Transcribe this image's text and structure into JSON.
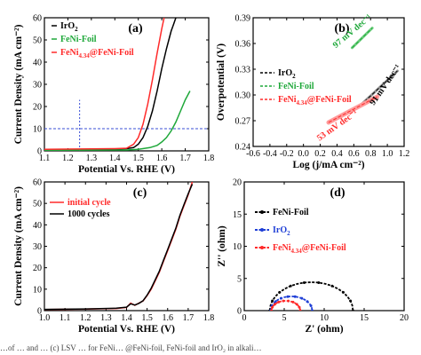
{
  "colors": {
    "black": "#000000",
    "red": "#ff2a2a",
    "green": "#1fa83a",
    "blue": "#1f3fd6",
    "light_red": "#ff9a9a",
    "light_green": "#6fcf7f",
    "grey": "#9a9a9a",
    "guide_blue": "#3a4fd6"
  },
  "caption": "…of … and … (c) LSV … for FeNi… @FeNi-foil, FeNi-foil and IrO₂ in alkali…",
  "chart_data": [
    {
      "id": "a",
      "type": "line",
      "panel_label": "(a)",
      "xlabel": "Potential Vs. RHE (V)",
      "ylabel": "Current Density (mA cm⁻²)",
      "xlim": [
        1.1,
        1.8
      ],
      "ylim": [
        0,
        60
      ],
      "xticks": [
        "1.1",
        "1.2",
        "1.3",
        "1.4",
        "1.5",
        "1.6",
        "1.7",
        "1.8"
      ],
      "yticks": [
        "0",
        "10",
        "20",
        "30",
        "40",
        "50",
        "60"
      ],
      "legend": [
        {
          "base": "IrO",
          "sub": "2",
          "rest": "",
          "color": "#000000"
        },
        {
          "base": "FeNi-Foil",
          "sub": "",
          "rest": "",
          "color": "#1fa83a"
        },
        {
          "base": "FeNi",
          "sub": "4.34",
          "rest": "@FeNi-Foil",
          "color": "#ff2a2a"
        }
      ],
      "series": [
        {
          "name": "IrO2",
          "color": "#000000",
          "x": [
            1.1,
            1.4,
            1.45,
            1.48,
            1.5,
            1.52,
            1.54,
            1.56,
            1.58,
            1.6,
            1.62,
            1.64,
            1.65,
            1.66
          ],
          "y": [
            0.5,
            0.8,
            1.0,
            1.5,
            3,
            6,
            11,
            18,
            27,
            37,
            46,
            54,
            57,
            60
          ]
        },
        {
          "name": "FeNi-Foil",
          "color": "#1fa83a",
          "x": [
            1.1,
            1.45,
            1.5,
            1.55,
            1.58,
            1.6,
            1.62,
            1.64,
            1.66,
            1.68,
            1.7,
            1.72
          ],
          "y": [
            0.3,
            0.4,
            0.7,
            1.5,
            2.5,
            4,
            6,
            9,
            13,
            18,
            23,
            27
          ]
        },
        {
          "name": "FeNi4.34@FeNi-Foil",
          "color": "#ff2a2a",
          "x": [
            1.1,
            1.4,
            1.45,
            1.48,
            1.5,
            1.52,
            1.54,
            1.56,
            1.58,
            1.6,
            1.61
          ],
          "y": [
            0.7,
            1.0,
            1.2,
            3,
            6,
            12,
            21,
            32,
            44,
            55,
            60
          ]
        }
      ],
      "guides": {
        "vertical_x": 1.25,
        "vertical_y_top": 23,
        "horizontal_y": 10
      }
    },
    {
      "id": "b",
      "type": "line",
      "panel_label": "(b)",
      "xlabel": "Log (j/mA cm⁻²)",
      "ylabel": "Overpotential (V)",
      "xlim": [
        -0.6,
        1.2
      ],
      "ylim": [
        0.24,
        0.39
      ],
      "xticks": [
        "-0.6",
        "-0.4",
        "-0.2",
        "0.0",
        "0.2",
        "0.4",
        "0.6",
        "0.8",
        "1.0",
        "1.2"
      ],
      "yticks": [
        "0.24",
        "0.27",
        "0.30",
        "0.33",
        "0.36",
        "0.39"
      ],
      "legend": [
        {
          "base": "IrO",
          "sub": "2",
          "rest": "",
          "color": "#000000"
        },
        {
          "base": "FeNi-Foil",
          "sub": "",
          "rest": "",
          "color": "#1fa83a"
        },
        {
          "base": "FeNi",
          "sub": "4.34",
          "rest": "@FeNi-Foil",
          "color": "#ff2a2a"
        }
      ],
      "series": [
        {
          "name": "IrO2",
          "color": "#000000",
          "x": [
            0.68,
            1.12
          ],
          "y": [
            0.288,
            0.328
          ]
        },
        {
          "name": "FeNi-Foil",
          "color": "#1fa83a",
          "x": [
            0.58,
            0.82
          ],
          "y": [
            0.355,
            0.378
          ]
        },
        {
          "name": "FeNi4.34@FeNi-Foil",
          "color": "#ff2a2a",
          "x": [
            0.3,
            0.88
          ],
          "y": [
            0.268,
            0.298
          ]
        }
      ],
      "annotations": [
        {
          "text": "97 mV dec⁻¹",
          "color": "#1fa83a",
          "x": 0.6,
          "y": 0.372
        },
        {
          "text": "91 mV dec⁻¹",
          "color": "#000000",
          "x": 1.0,
          "y": 0.31
        },
        {
          "text": "53 mV dec⁻¹",
          "color": "#ff2a2a",
          "x": 0.42,
          "y": 0.262
        }
      ]
    },
    {
      "id": "c",
      "type": "line",
      "panel_label": "(c)",
      "xlabel": "Potential Vs. RHE (V)",
      "ylabel": "Current Density (mA cm⁻²)",
      "xlim": [
        1.0,
        1.8
      ],
      "ylim": [
        0,
        60
      ],
      "xticks": [
        "1.0",
        "1.1",
        "1.2",
        "1.3",
        "1.4",
        "1.5",
        "1.6",
        "1.7",
        "1.8"
      ],
      "yticks": [
        "0",
        "10",
        "20",
        "30",
        "40",
        "50",
        "60"
      ],
      "legend": [
        {
          "base": "initial cycle",
          "sub": "",
          "rest": "",
          "color": "#ff2a2a"
        },
        {
          "base": "1000 cycles",
          "sub": "",
          "rest": "",
          "color": "#000000"
        }
      ],
      "series": [
        {
          "name": "initial cycle",
          "color": "#ff2a2a",
          "x": [
            1.0,
            1.2,
            1.35,
            1.4,
            1.42,
            1.44,
            1.46,
            1.48,
            1.5,
            1.52,
            1.54,
            1.56,
            1.58,
            1.6,
            1.62,
            1.64,
            1.66,
            1.68,
            1.7,
            1.72
          ],
          "y": [
            0.5,
            0.7,
            1.0,
            1.5,
            3.5,
            2.5,
            3.5,
            4.5,
            7,
            10,
            14,
            18,
            23,
            28,
            33,
            38,
            44,
            49,
            54,
            60
          ]
        },
        {
          "name": "1000 cycles",
          "color": "#000000",
          "x": [
            1.0,
            1.2,
            1.35,
            1.4,
            1.42,
            1.44,
            1.46,
            1.48,
            1.5,
            1.52,
            1.54,
            1.56,
            1.58,
            1.6,
            1.62,
            1.64,
            1.66,
            1.68,
            1.7,
            1.72
          ],
          "y": [
            0.6,
            0.8,
            1.1,
            1.6,
            3.2,
            2.6,
            3.4,
            4.6,
            7.2,
            10.5,
            14.5,
            18.5,
            23.5,
            28.5,
            33.5,
            38.5,
            44.5,
            49.5,
            54.5,
            59
          ]
        }
      ]
    },
    {
      "id": "d",
      "type": "scatter",
      "panel_label": "(d)",
      "xlabel": "Z' (ohm)",
      "ylabel": "Z'' (ohm)",
      "xlim": [
        0,
        20
      ],
      "ylim": [
        0,
        20
      ],
      "xticks": [
        "0",
        "5",
        "10",
        "15",
        "20"
      ],
      "yticks": [
        "0",
        "5",
        "10",
        "15",
        "20"
      ],
      "legend": [
        {
          "base": "FeNi-Foil",
          "sub": "",
          "rest": "",
          "color": "#000000"
        },
        {
          "base": "IrO",
          "sub": "2",
          "rest": "",
          "color": "#1f3fd6"
        },
        {
          "base": "FeNi",
          "sub": "4.34",
          "rest": "@FeNi-Foil",
          "color": "#ff2a2a"
        }
      ],
      "series": [
        {
          "name": "FeNi-Foil",
          "color": "#000000",
          "center": 8.4,
          "radius": 5.2,
          "x_start": 3.2,
          "x_end": 13.6
        },
        {
          "name": "IrO2",
          "color": "#1f3fd6",
          "center": 5.9,
          "radius": 2.6,
          "x_start": 3.3,
          "x_end": 8.5
        },
        {
          "name": "FeNi4.34@FeNi-Foil",
          "color": "#ff2a2a",
          "center": 5.2,
          "radius": 1.8,
          "x_start": 3.4,
          "x_end": 7.0
        }
      ]
    }
  ]
}
